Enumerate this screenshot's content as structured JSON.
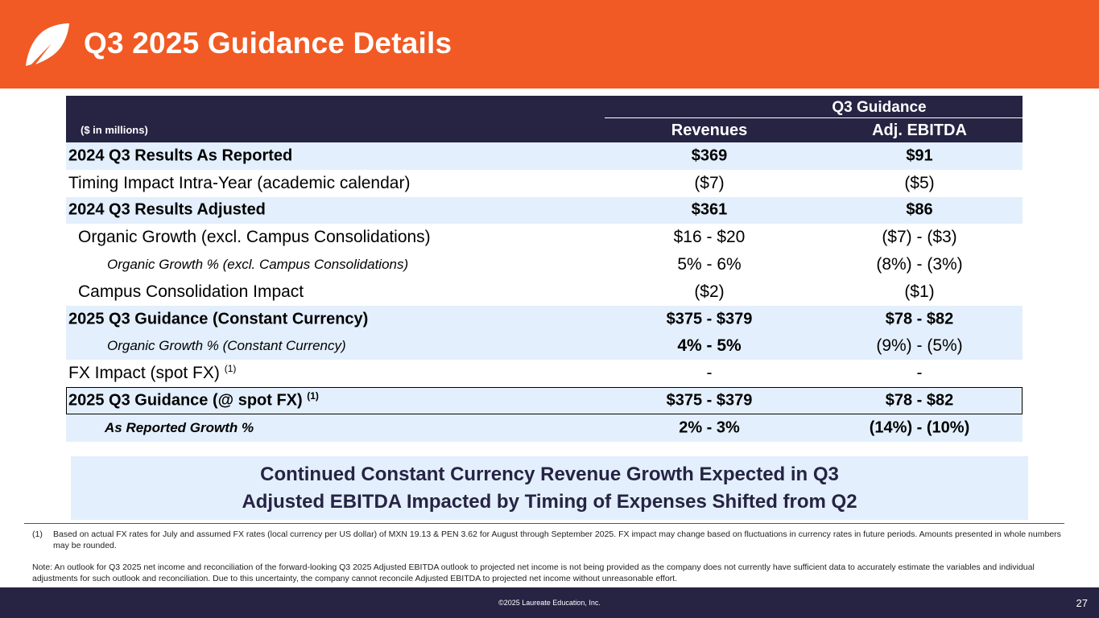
{
  "header": {
    "title": "Q3 2025 Guidance Details",
    "bg_color": "#F15A24",
    "logo": "laureate-leaf-icon"
  },
  "table": {
    "units": "($ in millions)",
    "group_header": "Q3 Guidance",
    "columns": [
      "Revenues",
      "Adj. EBITDA"
    ],
    "rows": [
      {
        "label": "2024 Q3 Results As Reported",
        "revenues": "$369",
        "ebitda": "$91"
      },
      {
        "label": "Timing Impact Intra-Year (academic calendar)",
        "revenues": "($7)",
        "ebitda": "($5)"
      },
      {
        "label": "2024 Q3 Results Adjusted",
        "revenues": "$361",
        "ebitda": "$86"
      },
      {
        "label": "Organic Growth (excl. Campus Consolidations)",
        "revenues": "$16 - $20",
        "ebitda": "($7) - ($3)"
      },
      {
        "label": "Organic Growth % (excl. Campus Consolidations)",
        "revenues": "5% - 6%",
        "ebitda": "(8%) - (3%)"
      },
      {
        "label": "Campus Consolidation Impact",
        "revenues": "($2)",
        "ebitda": "($1)"
      },
      {
        "label": "2025 Q3 Guidance (Constant Currency)",
        "revenues": "$375 - $379",
        "ebitda": "$78 - $82"
      },
      {
        "label": "Organic Growth % (Constant Currency)",
        "revenues": "4% - 5%",
        "ebitda": "(9%) - (5%)"
      },
      {
        "label": "FX Impact (spot FX)",
        "sup": "(1)",
        "revenues": "-",
        "ebitda": "-"
      },
      {
        "label": "2025 Q3 Guidance (@ spot FX)",
        "sup": "(1)",
        "revenues": "$375 - $379",
        "ebitda": "$78 - $82"
      },
      {
        "label": "As Reported Growth %",
        "revenues": "2% - 3%",
        "ebitda": "(14%) - (10%)"
      }
    ]
  },
  "callout": {
    "line1": "Continued Constant Currency Revenue Growth Expected in Q3",
    "line2": "Adjusted EBITDA Impacted by Timing of Expenses Shifted from Q2"
  },
  "footnotes": {
    "fn1_num": "(1)",
    "fn1_text": "Based on actual FX rates for July and assumed FX rates (local currency per US dollar) of MXN 19.13 & PEN 3.62 for August through September 2025. FX impact may change based on fluctuations in currency rates in future periods. Amounts presented in whole numbers may be rounded.",
    "note": "Note: An outlook for Q3 2025 net income and reconciliation of the forward-looking Q3 2025 Adjusted EBITDA outlook to projected net income is not being provided as the company does not currently have sufficient data to accurately estimate the variables and individual adjustments for such outlook and reconciliation.  Due to this uncertainty, the company cannot reconcile Adjusted EBITDA to projected net income without unreasonable effort."
  },
  "footer": {
    "copyright": "©2025 Laureate Education, Inc.",
    "page_number": "27"
  }
}
